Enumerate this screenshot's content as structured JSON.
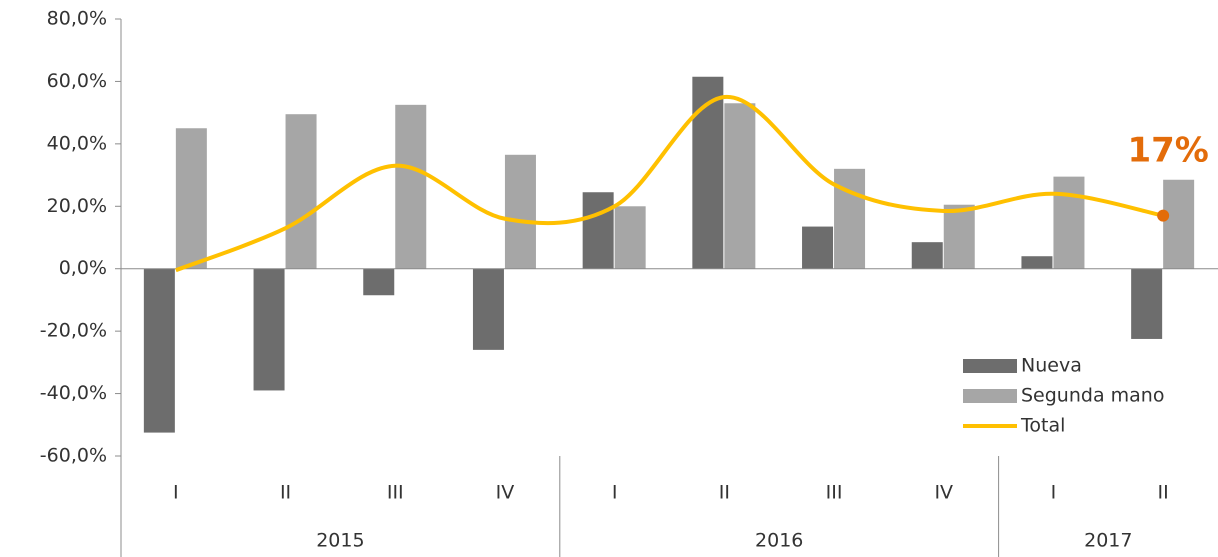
{
  "chart_data": {
    "type": "bar",
    "groups": [
      {
        "name": "2015",
        "categories": [
          "I",
          "II",
          "III",
          "IV"
        ]
      },
      {
        "name": "2016",
        "categories": [
          "I",
          "II",
          "III",
          "IV"
        ]
      },
      {
        "name": "2017",
        "categories": [
          "I",
          "II"
        ]
      }
    ],
    "series": [
      {
        "name": "Nueva",
        "type": "bar",
        "color": "#6d6d6d",
        "values": [
          -52.5,
          -39,
          -8.5,
          -26,
          24.5,
          61.5,
          13.5,
          8.5,
          4,
          -22.5
        ]
      },
      {
        "name": "Segunda mano",
        "type": "bar",
        "color": "#a6a6a6",
        "values": [
          45,
          49.5,
          52.5,
          36.5,
          20,
          53,
          32,
          20.5,
          29.5,
          28.5
        ]
      },
      {
        "name": "Total",
        "type": "line",
        "color": "#ffc000",
        "values": [
          -0.5,
          13,
          33,
          16,
          20,
          55,
          27,
          18.5,
          24,
          17
        ]
      }
    ],
    "annotation": {
      "text": "17%",
      "color": "#e36c0a"
    },
    "ylim": [
      -60,
      80
    ],
    "yticks": [
      {
        "value": -60,
        "label": "-60,0%"
      },
      {
        "value": -40,
        "label": "-40,0%"
      },
      {
        "value": -20,
        "label": "-20,0%"
      },
      {
        "value": 0,
        "label": "0,0%"
      },
      {
        "value": 20,
        "label": "20,0%"
      },
      {
        "value": 40,
        "label": "40,0%"
      },
      {
        "value": 60,
        "label": "60,0%"
      },
      {
        "value": 80,
        "label": "80,0%"
      }
    ],
    "legend": "bottom-right"
  }
}
